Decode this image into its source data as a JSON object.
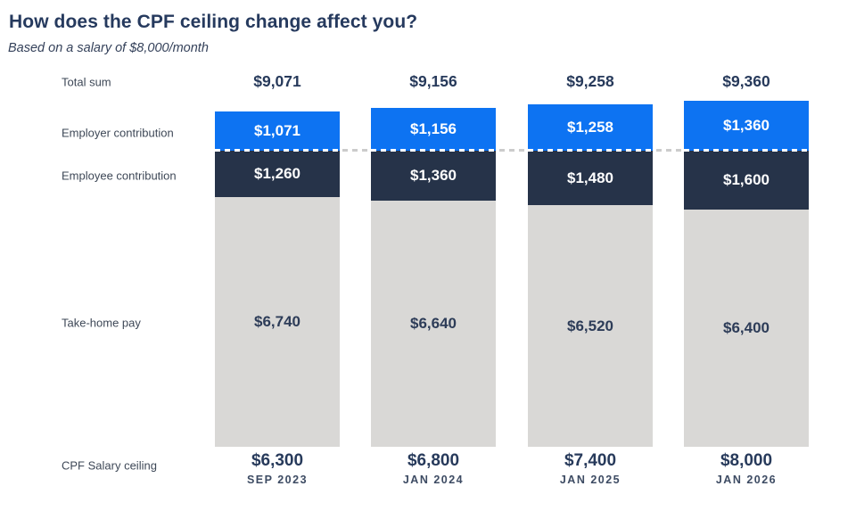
{
  "title": "How does the CPF ceiling change affect you?",
  "subtitle": "Based on a salary of $8,000/month",
  "row_labels": {
    "total": "Total sum",
    "employer": "Employer contribution",
    "employee": "Employee contribution",
    "takehome": "Take-home pay",
    "ceiling": "CPF Salary ceiling"
  },
  "colors": {
    "employer": "#0d73f2",
    "employee": "#263349",
    "takehome": "#d9d8d6",
    "dash_gray": "#cccccc",
    "dash_white": "#ffffff",
    "text_navy": "#273a5b"
  },
  "chart_data": {
    "type": "bar",
    "stacked": true,
    "orientation": "vertical",
    "categories": [
      "SEP 2023",
      "JAN 2024",
      "JAN 2025",
      "JAN 2026"
    ],
    "series": [
      {
        "name": "Employer contribution",
        "values": [
          1071,
          1156,
          1258,
          1360
        ]
      },
      {
        "name": "Employee contribution",
        "values": [
          1260,
          1360,
          1480,
          1600
        ]
      },
      {
        "name": "Take-home pay",
        "values": [
          6740,
          6640,
          6520,
          6400
        ]
      }
    ],
    "totals": [
      9071,
      9156,
      9258,
      9360
    ],
    "ceilings": [
      6300,
      6800,
      7400,
      8000
    ],
    "total_labels": [
      "$9,071",
      "$9,156",
      "$9,258",
      "$9,360"
    ],
    "employer_labels": [
      "$1,071",
      "$1,156",
      "$1,258",
      "$1,360"
    ],
    "employee_labels": [
      "$1,260",
      "$1,360",
      "$1,480",
      "$1,600"
    ],
    "takehome_labels": [
      "$6,740",
      "$6,640",
      "$6,520",
      "$6,400"
    ],
    "ceiling_labels": [
      "$6,300",
      "$6,800",
      "$7,400",
      "$8,000"
    ],
    "annotations": [
      "dashed horizontal reference line at employer/employee boundary"
    ],
    "legend_position": "row labels at left",
    "grid": false
  }
}
